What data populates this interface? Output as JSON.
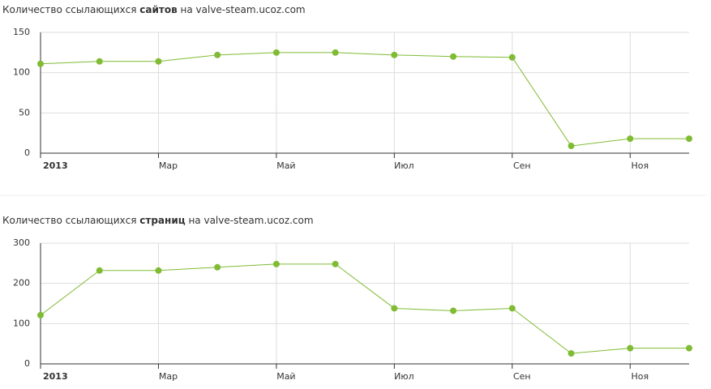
{
  "chart_data": [
    {
      "type": "line",
      "title": {
        "prefix": "Количество ссылающихся",
        "bold": "сайтов",
        "suffix": "на valve-steam.ucoz.com"
      },
      "categories": [
        "2013",
        null,
        "Мар",
        null,
        "Май",
        null,
        "Июл",
        null,
        "Сен",
        null,
        "Ноя",
        null
      ],
      "series": [
        {
          "color": "#80bb34",
          "values": [
            111,
            114,
            114,
            122,
            125,
            125,
            122,
            120,
            119,
            9,
            18,
            18
          ]
        }
      ],
      "ylim": [
        0,
        150
      ],
      "yticks": [
        0,
        50,
        100,
        150
      ],
      "grid": true
    },
    {
      "type": "line",
      "title": {
        "prefix": "Количество ссылающихся",
        "bold": "страниц",
        "suffix": "на valve-steam.ucoz.com"
      },
      "categories": [
        "2013",
        null,
        "Мар",
        null,
        "Май",
        null,
        "Июл",
        null,
        "Сен",
        null,
        "Ноя",
        null
      ],
      "series": [
        {
          "color": "#80bb34",
          "values": [
            121,
            232,
            232,
            240,
            248,
            248,
            138,
            132,
            138,
            26,
            39,
            39
          ]
        }
      ],
      "ylim": [
        0,
        300
      ],
      "yticks": [
        0,
        100,
        200,
        300
      ],
      "grid": true
    }
  ]
}
